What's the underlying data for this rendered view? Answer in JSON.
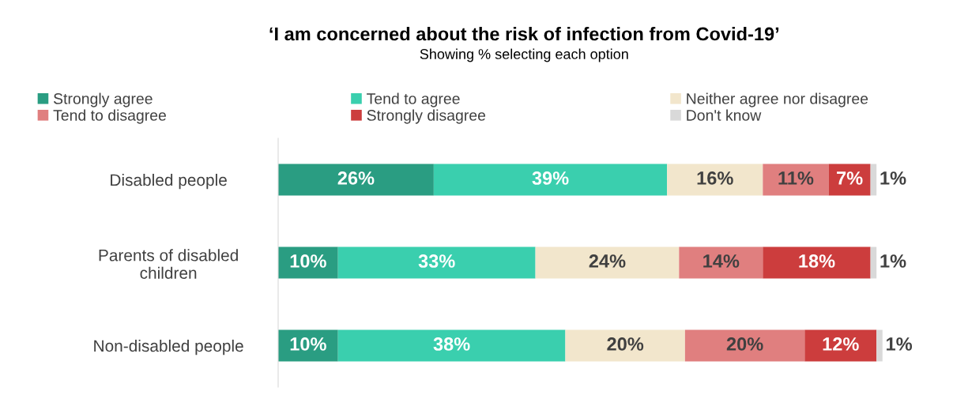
{
  "chart_data": {
    "type": "bar",
    "orientation": "horizontal",
    "stacked": true,
    "legend": "top",
    "grid": false,
    "title": "‘I am concerned about the risk of infection from Covid-19’",
    "subtitle": "Showing % selecting each option",
    "categories": [
      "Disabled people",
      "Parents of disabled children",
      "Non-disabled people"
    ],
    "series": [
      {
        "name": "Strongly agree",
        "color": "#2a9d82",
        "values": [
          26,
          10,
          10
        ],
        "value_labels": [
          "26%",
          "10%",
          "10%"
        ]
      },
      {
        "name": "Tend to agree",
        "color": "#3acfae",
        "values": [
          39,
          33,
          38
        ],
        "value_labels": [
          "39%",
          "33%",
          "38%"
        ]
      },
      {
        "name": "Neither agree nor disagree",
        "color": "#f2e6cc",
        "values": [
          16,
          24,
          20
        ],
        "value_labels": [
          "16%",
          "24%",
          "20%"
        ]
      },
      {
        "name": "Tend to disagree",
        "color": "#e07f7f",
        "values": [
          11,
          14,
          20
        ],
        "value_labels": [
          "11%",
          "14%",
          "20%"
        ]
      },
      {
        "name": "Strongly disagree",
        "color": "#cc3d3d",
        "values": [
          7,
          18,
          12
        ],
        "value_labels": [
          "7%",
          "18%",
          "12%"
        ]
      },
      {
        "name": "Don't know",
        "color": "#d9d9d9",
        "values": [
          1,
          1,
          1
        ],
        "value_labels": [
          "1%",
          "1%",
          "1%"
        ]
      }
    ]
  }
}
